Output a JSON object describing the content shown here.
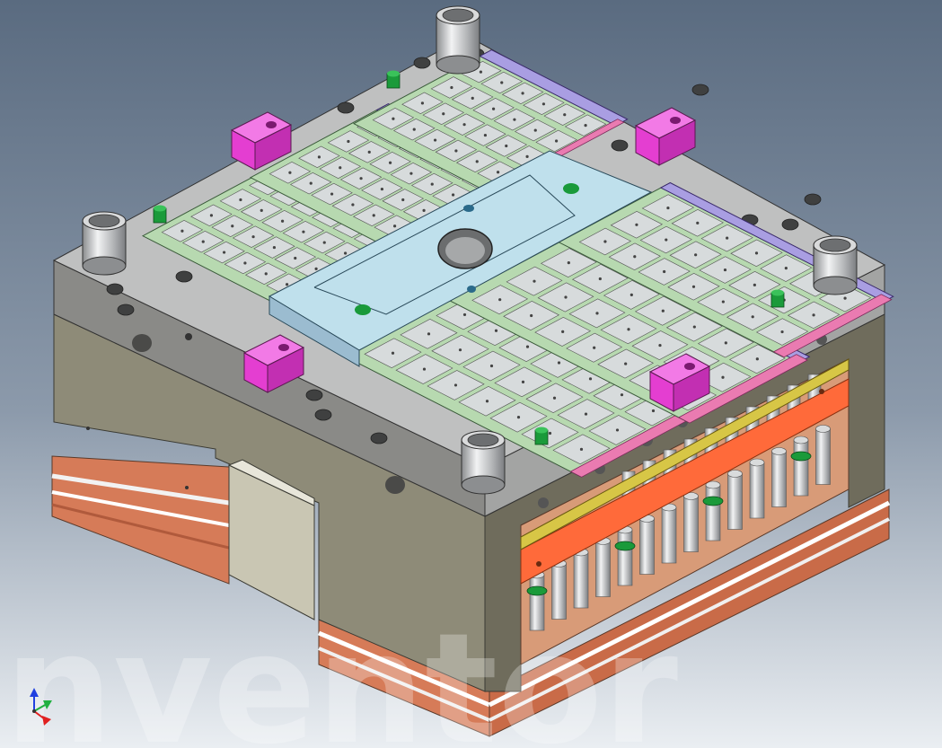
{
  "viewport": {
    "background_top": "#5a6b80",
    "background_bottom": "#eaeef2"
  },
  "watermark": {
    "text": "nventor"
  },
  "colors": {
    "steel_top": "#bfc0c0",
    "steel_side_front": "#8a8a87",
    "steel_side_right": "#a3a4a3",
    "plate_olive": "#8e8b78",
    "plate_olive_dark": "#6f6c5c",
    "copper": "#d67b58",
    "copper_dark": "#b05a3c",
    "insert_cavity": "#d7dbdc",
    "insert_green": "#b7d9b0",
    "insert_purple": "#a99ee2",
    "insert_pink": "#ea7bb1",
    "runner_plate": "#bfe0ec",
    "clamp_magenta": "#e43ed1",
    "pin_green": "#1a9a3a",
    "bar_orange": "#ff6a3a",
    "bar_yellow": "#d7c646"
  },
  "axis_triad": {
    "x_color": "#e02020",
    "y_color": "#20b040",
    "z_color": "#2040e0"
  }
}
